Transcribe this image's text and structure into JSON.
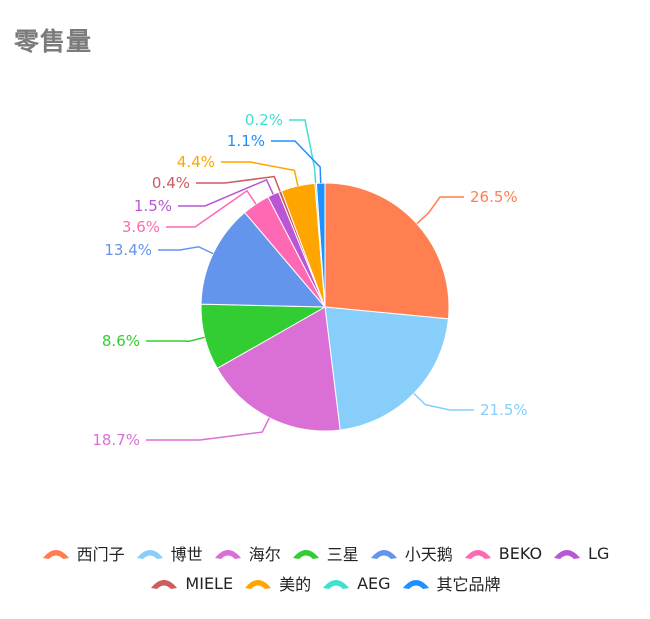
{
  "title": "零售量",
  "chart_data": {
    "type": "pie",
    "title": "零售量",
    "unit": "%",
    "legend_position": "bottom",
    "series": [
      {
        "name": "西门子",
        "value": 26.5,
        "label": "26.5%",
        "color": "#ff7f50"
      },
      {
        "name": "博世",
        "value": 21.5,
        "label": "21.5%",
        "color": "#87cefa"
      },
      {
        "name": "海尔",
        "value": 18.7,
        "label": "18.7%",
        "color": "#da70d6"
      },
      {
        "name": "三星",
        "value": 8.6,
        "label": "8.6%",
        "color": "#32cd32"
      },
      {
        "name": "小天鹅",
        "value": 13.4,
        "label": "13.4%",
        "color": "#6495ed"
      },
      {
        "name": "BEKO",
        "value": 3.6,
        "label": "3.6%",
        "color": "#ff69b4"
      },
      {
        "name": "LG",
        "value": 1.5,
        "label": "1.5%",
        "color": "#ba55d3"
      },
      {
        "name": "MIELE",
        "value": 0.4,
        "label": "0.4%",
        "color": "#cd5c5c"
      },
      {
        "name": "美的",
        "value": 4.4,
        "label": "4.4%",
        "color": "#ffa500"
      },
      {
        "name": "AEG",
        "value": 0.2,
        "label": "0.2%",
        "color": "#40e0d0"
      },
      {
        "name": "其它品牌",
        "value": 1.1,
        "label": "1.1%",
        "color": "#1e90ff"
      }
    ]
  }
}
